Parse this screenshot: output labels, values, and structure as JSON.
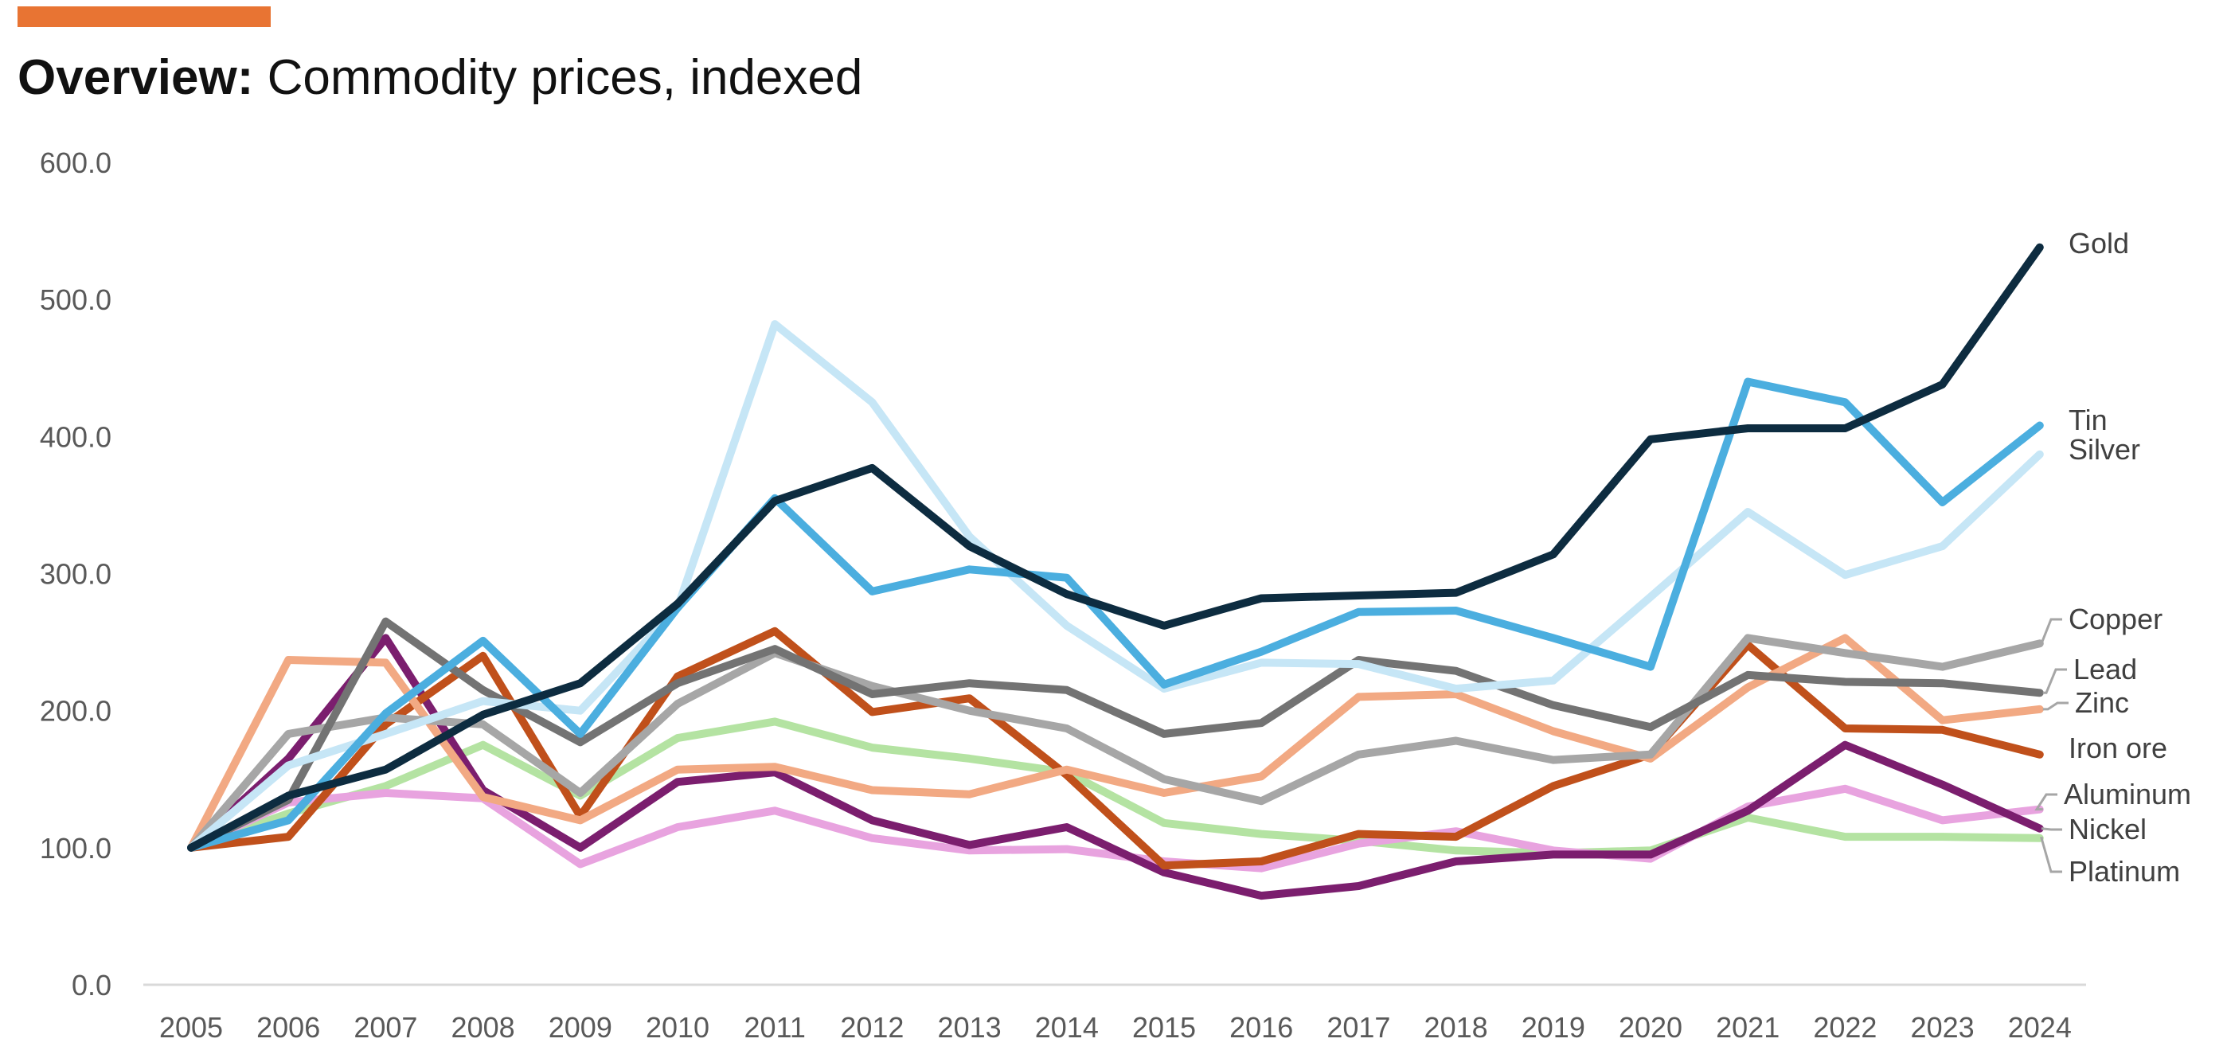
{
  "header": {
    "accent_color": "#E87433",
    "title_bold": "Overview:",
    "title_rest": " Commodity prices, indexed"
  },
  "chart_data": {
    "type": "line",
    "title": "Overview: Commodity prices, indexed",
    "xlabel": "",
    "ylabel": "",
    "x": [
      "2005",
      "2006",
      "2007",
      "2008",
      "2009",
      "2010",
      "2011",
      "2012",
      "2013",
      "2014",
      "2015",
      "2016",
      "2017",
      "2018",
      "2019",
      "2020",
      "2021",
      "2022",
      "2023",
      "2024"
    ],
    "ylim": [
      0,
      600
    ],
    "yticks": [
      "0.0",
      "100.0",
      "200.0",
      "300.0",
      "400.0",
      "500.0",
      "600.0"
    ],
    "grid": false,
    "legend": "direct labels at right end of lines",
    "series": [
      {
        "name": "Platinum",
        "color": "#B4E3A2",
        "label_color": "#404040",
        "values": [
          100,
          125,
          145,
          175,
          138,
          180,
          192,
          173,
          165,
          155,
          118,
          110,
          105,
          98,
          96,
          98,
          122,
          108,
          108,
          107
        ]
      },
      {
        "name": "Aluminum",
        "color": "#E8A3DF",
        "label_color": "#404040",
        "values": [
          100,
          133,
          140,
          136,
          88,
          115,
          127,
          107,
          98,
          99,
          90,
          85,
          103,
          112,
          98,
          92,
          130,
          143,
          120,
          128
        ]
      },
      {
        "name": "Nickel",
        "color": "#7B1E6E",
        "label_color": "#404040",
        "values": [
          100,
          165,
          253,
          142,
          100,
          148,
          155,
          120,
          102,
          115,
          82,
          65,
          72,
          90,
          95,
          95,
          127,
          175,
          146,
          114
        ]
      },
      {
        "name": "Iron ore",
        "color": "#C0501B",
        "label_color": "#404040",
        "values": [
          100,
          108,
          190,
          240,
          123,
          225,
          258,
          199,
          209,
          153,
          87,
          90,
          110,
          108,
          145,
          168,
          248,
          187,
          186,
          168
        ]
      },
      {
        "name": "Zinc",
        "color": "#F2A983",
        "label_color": "#404040",
        "values": [
          100,
          237,
          235,
          137,
          120,
          157,
          159,
          142,
          139,
          157,
          140,
          152,
          210,
          212,
          185,
          165,
          217,
          253,
          193,
          201
        ]
      },
      {
        "name": "Copper",
        "color": "#A6A6A6",
        "label_color": "#404040",
        "values": [
          100,
          183,
          195,
          190,
          140,
          205,
          242,
          218,
          200,
          187,
          150,
          134,
          168,
          178,
          164,
          168,
          253,
          242,
          232,
          249
        ]
      },
      {
        "name": "Lead",
        "color": "#737373",
        "label_color": "#404040",
        "values": [
          100,
          135,
          265,
          215,
          177,
          220,
          245,
          212,
          220,
          215,
          183,
          191,
          237,
          229,
          204,
          188,
          226,
          221,
          220,
          213
        ]
      },
      {
        "name": "Silver",
        "color": "#C6E6F6",
        "label_color": "#404040",
        "values": [
          100,
          160,
          183,
          207,
          200,
          275,
          482,
          425,
          327,
          262,
          216,
          235,
          234,
          216,
          222,
          283,
          345,
          299,
          320,
          387
        ]
      },
      {
        "name": "Tin",
        "color": "#4BAEDF",
        "label_color": "#404040",
        "values": [
          100,
          120,
          198,
          251,
          183,
          275,
          355,
          287,
          303,
          297,
          219,
          243,
          272,
          273,
          253,
          232,
          440,
          425,
          352,
          408
        ]
      },
      {
        "name": "Gold",
        "color": "#0D2C40",
        "label_color": "#404040",
        "values": [
          100,
          138,
          157,
          197,
          220,
          278,
          353,
          377,
          320,
          285,
          262,
          282,
          284,
          286,
          314,
          398,
          406,
          406,
          438,
          538
        ]
      }
    ]
  }
}
